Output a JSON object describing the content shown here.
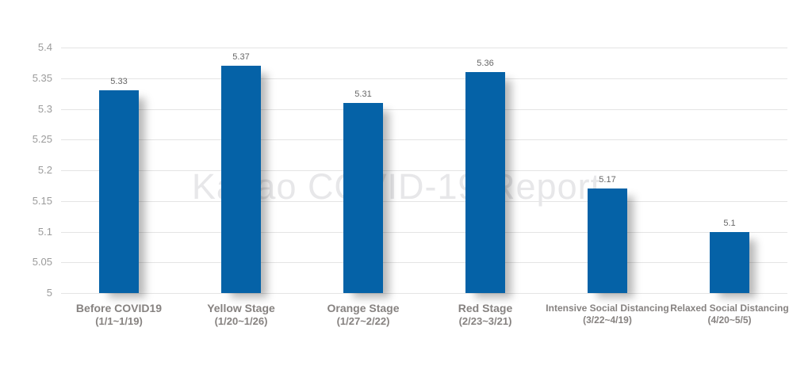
{
  "chart_data": {
    "type": "bar",
    "title": "",
    "watermark": "Kakao COVID-19 Report",
    "categories": [
      {
        "name": "Before COVID19",
        "dates": "(1/1~1/19)",
        "emphasis": true
      },
      {
        "name": "Yellow Stage",
        "dates": "(1/20~1/26)",
        "emphasis": true
      },
      {
        "name": "Orange Stage",
        "dates": "(1/27~2/22)",
        "emphasis": true
      },
      {
        "name": "Red Stage",
        "dates": "(2/23~3/21)",
        "emphasis": true
      },
      {
        "name": "Intensive Social Distancing",
        "dates": "(3/22~4/19)",
        "emphasis": false
      },
      {
        "name": "Relaxed Social Distancing",
        "dates": "(4/20~5/5)",
        "emphasis": false
      }
    ],
    "values": [
      5.33,
      5.37,
      5.31,
      5.36,
      5.17,
      5.1
    ],
    "value_labels": [
      "5.33",
      "5.37",
      "5.31",
      "5.36",
      "5.17",
      "5.1"
    ],
    "ylim": [
      5,
      5.4
    ],
    "ytick_values": [
      5.4,
      5.35,
      5.3,
      5.25,
      5.2,
      5.15,
      5.1,
      5.05,
      5
    ],
    "ytick_labels": [
      "5.4",
      "5.35",
      "5.3",
      "5.25",
      "5.2",
      "5.15",
      "5.1",
      "5.05",
      "5"
    ],
    "grid": true,
    "legend": false,
    "xlabel": "",
    "ylabel": "",
    "colors": {
      "bar": "#0562a7",
      "grid_line": "#e4e4e4",
      "ytick_text": "#9b9b9b",
      "value_text": "#666666",
      "category_text": "#868280",
      "watermark_text": "#e7e7e9",
      "background": "#ffffff"
    }
  }
}
